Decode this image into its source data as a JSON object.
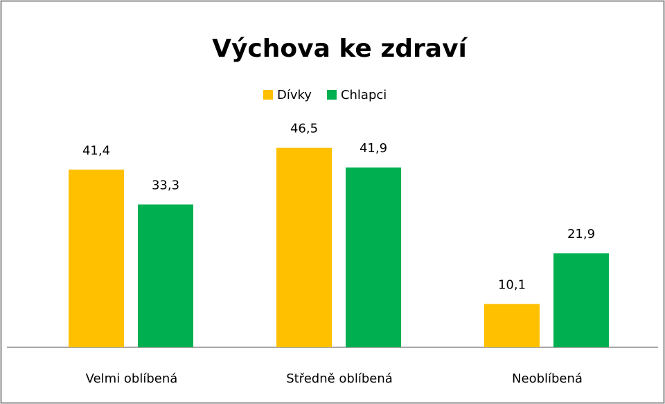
{
  "chart_data": {
    "type": "bar",
    "title": "Výchova ke zdraví",
    "categories": [
      "Velmi oblíbená",
      "Středně oblíbená",
      "Neoblíbená"
    ],
    "series": [
      {
        "name": "Dívky",
        "color": "#ffc000",
        "values": [
          41.4,
          46.5,
          10.1
        ],
        "value_labels": [
          "41,4",
          "46,5",
          "10,1"
        ]
      },
      {
        "name": "Chlapci",
        "color": "#00b050",
        "values": [
          33.3,
          41.9,
          21.9
        ],
        "value_labels": [
          "33,3",
          "41,9",
          "21,9"
        ]
      }
    ],
    "ylim": [
      0,
      50
    ],
    "legend": "top"
  }
}
